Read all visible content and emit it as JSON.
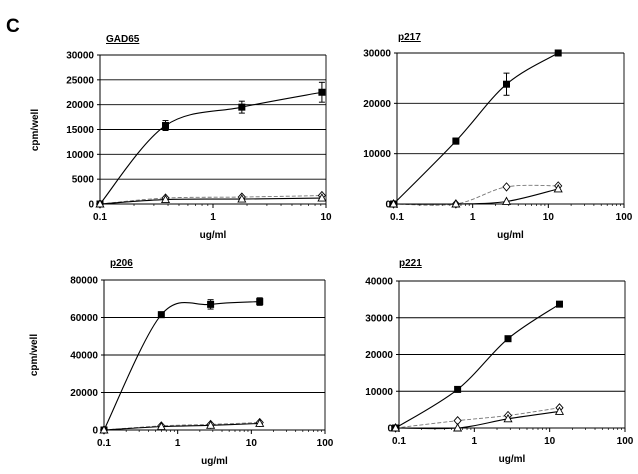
{
  "figure": {
    "panel_letter": "C"
  },
  "chart_data": [
    {
      "type": "line",
      "title": "GAD65",
      "xlabel": "ug/ml",
      "ylabel": "cpm/well",
      "xscale": "log",
      "xlim": [
        0.1,
        10
      ],
      "ylim": [
        0,
        30000
      ],
      "xticks": [
        "0.1",
        "1",
        "10"
      ],
      "yticks": [
        "0",
        "5000",
        "10000",
        "15000",
        "20000",
        "25000",
        "30000"
      ],
      "grid": true,
      "series": [
        {
          "marker": "filled-square",
          "line": "solid",
          "x": [
            0.1,
            0.38,
            1.8,
            9.2
          ],
          "y": [
            0,
            15800,
            19500,
            22500
          ],
          "err": [
            0,
            1000,
            1200,
            2000
          ]
        },
        {
          "marker": "open-diamond",
          "line": "dashed",
          "x": [
            0.1,
            0.38,
            1.8,
            9.2
          ],
          "y": [
            0,
            1200,
            1400,
            1700
          ]
        },
        {
          "marker": "open-triangle",
          "line": "solid",
          "x": [
            0.1,
            0.38,
            1.8,
            9.2
          ],
          "y": [
            0,
            900,
            1000,
            1200
          ]
        }
      ]
    },
    {
      "type": "line",
      "title": "p217",
      "xlabel": "ug/ml",
      "ylabel": "",
      "xscale": "log",
      "xlim": [
        0.1,
        100
      ],
      "ylim": [
        0,
        30000
      ],
      "xticks": [
        "0.1",
        "1",
        "10",
        "100"
      ],
      "yticks": [
        "0",
        "10000",
        "20000",
        "30000"
      ],
      "grid": true,
      "series": [
        {
          "marker": "filled-square",
          "line": "solid",
          "x": [
            0.09,
            0.6,
            2.8,
            13.5
          ],
          "y": [
            0,
            12500,
            23800,
            30000
          ],
          "err": [
            0,
            600,
            2200,
            500
          ]
        },
        {
          "marker": "open-diamond",
          "line": "dashed",
          "x": [
            0.09,
            0.6,
            2.8,
            13.5
          ],
          "y": [
            0,
            0,
            3400,
            3600
          ]
        },
        {
          "marker": "open-triangle",
          "line": "solid",
          "x": [
            0.09,
            0.6,
            2.8,
            13.5
          ],
          "y": [
            0,
            0,
            500,
            3000
          ]
        }
      ]
    },
    {
      "type": "line",
      "title": "p206",
      "xlabel": "ug/ml",
      "ylabel": "cpm/well",
      "xscale": "log",
      "xlim": [
        0.1,
        100
      ],
      "ylim": [
        0,
        80000
      ],
      "xticks": [
        "0.1",
        "1",
        "10",
        "100"
      ],
      "yticks": [
        "0",
        "20000",
        "40000",
        "60000",
        "80000"
      ],
      "grid": true,
      "series": [
        {
          "marker": "filled-square",
          "line": "solid",
          "x": [
            0.1,
            0.6,
            2.8,
            13
          ],
          "y": [
            0,
            61500,
            67000,
            68500
          ],
          "err": [
            0,
            1500,
            2500,
            2000
          ]
        },
        {
          "marker": "open-diamond",
          "line": "dashed",
          "x": [
            0.1,
            0.6,
            2.8,
            13
          ],
          "y": [
            0,
            2200,
            3000,
            4000
          ]
        },
        {
          "marker": "open-triangle",
          "line": "solid",
          "x": [
            0.1,
            0.6,
            2.8,
            13
          ],
          "y": [
            0,
            1800,
            2500,
            3500
          ]
        }
      ]
    },
    {
      "type": "line",
      "title": "p221",
      "xlabel": "ug/ml",
      "ylabel": "",
      "xscale": "log",
      "xlim": [
        0.1,
        100
      ],
      "ylim": [
        0,
        40000
      ],
      "xticks": [
        "0.1",
        "1",
        "10",
        "100"
      ],
      "yticks": [
        "0",
        "10000",
        "20000",
        "30000",
        "40000"
      ],
      "grid": true,
      "series": [
        {
          "marker": "filled-square",
          "line": "solid",
          "x": [
            0.09,
            0.6,
            2.8,
            13.5
          ],
          "y": [
            0,
            10500,
            24300,
            33700
          ]
        },
        {
          "marker": "open-diamond",
          "line": "dashed",
          "x": [
            0.09,
            0.6,
            2.8,
            13.5
          ],
          "y": [
            0,
            2000,
            3400,
            5500
          ]
        },
        {
          "marker": "open-triangle",
          "line": "solid",
          "x": [
            0.09,
            0.6,
            2.8,
            13.5
          ],
          "y": [
            0,
            0,
            2500,
            4500
          ]
        }
      ]
    }
  ]
}
